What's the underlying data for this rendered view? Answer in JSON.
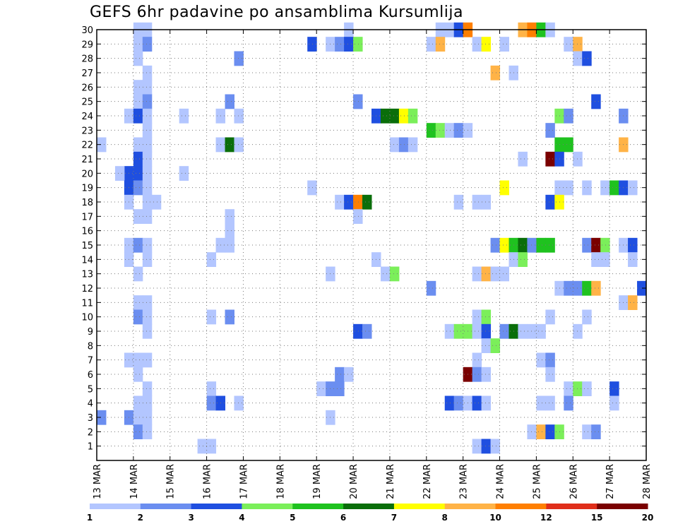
{
  "chart_data": {
    "type": "heatmap",
    "title": "GEFS 6hr padavine po ansamblima Kursumlija",
    "xlabel": "",
    "ylabel": "",
    "x_tick_labels": [
      "13 MAR",
      "14 MAR",
      "15 MAR",
      "16 MAR",
      "17 MAR",
      "18 MAR",
      "19 MAR",
      "20 MAR",
      "21 MAR",
      "22 MAR",
      "23 MAR",
      "24 MAR",
      "25 MAR",
      "26 MAR",
      "27 MAR",
      "28 MAR"
    ],
    "x_range_days": [
      13,
      28
    ],
    "y_tick_labels": [
      "1",
      "2",
      "3",
      "4",
      "5",
      "6",
      "7",
      "8",
      "9",
      "10",
      "11",
      "12",
      "13",
      "14",
      "15",
      "16",
      "17",
      "18",
      "19",
      "20",
      "21",
      "22",
      "23",
      "24",
      "25",
      "26",
      "27",
      "28",
      "29",
      "30"
    ],
    "y_range": [
      0,
      30
    ],
    "grid": true,
    "colorbar": {
      "labels": [
        "1",
        "2",
        "3",
        "4",
        "5",
        "6",
        "7",
        "8",
        "10",
        "12",
        "15",
        "20"
      ],
      "colors": [
        "#b3c6ff",
        "#6b8ef0",
        "#1f4fe0",
        "#7bef5a",
        "#1fc21f",
        "#0a6e0a",
        "#ffff00",
        "#ffb347",
        "#ff7f00",
        "#e02e1a",
        "#7a0000"
      ]
    },
    "cells": [
      [
        14.0,
        30,
        1
      ],
      [
        14.25,
        30,
        1
      ],
      [
        19.75,
        30,
        1
      ],
      [
        22.25,
        30,
        1
      ],
      [
        22.5,
        30,
        1
      ],
      [
        22.75,
        30,
        3
      ],
      [
        23.0,
        30,
        9
      ],
      [
        24.5,
        30,
        8
      ],
      [
        24.75,
        30,
        9
      ],
      [
        25.0,
        30,
        5
      ],
      [
        25.25,
        30,
        1
      ],
      [
        14.0,
        29,
        1
      ],
      [
        14.25,
        29,
        2
      ],
      [
        18.75,
        29,
        3
      ],
      [
        19.25,
        29,
        1
      ],
      [
        19.5,
        29,
        2
      ],
      [
        19.75,
        29,
        3
      ],
      [
        20.0,
        29,
        4
      ],
      [
        22.0,
        29,
        1
      ],
      [
        22.25,
        29,
        8
      ],
      [
        23.25,
        29,
        1
      ],
      [
        23.5,
        29,
        7
      ],
      [
        24.0,
        29,
        1
      ],
      [
        25.75,
        29,
        1
      ],
      [
        26.0,
        29,
        8
      ],
      [
        14.0,
        28,
        1
      ],
      [
        16.75,
        28,
        2
      ],
      [
        26.0,
        28,
        1
      ],
      [
        26.25,
        28,
        3
      ],
      [
        14.25,
        27,
        1
      ],
      [
        23.75,
        27,
        8
      ],
      [
        24.25,
        27,
        1
      ],
      [
        14.0,
        26,
        1
      ],
      [
        14.25,
        26,
        1
      ],
      [
        14.0,
        25,
        1
      ],
      [
        14.25,
        25,
        2
      ],
      [
        16.5,
        25,
        2
      ],
      [
        20.0,
        25,
        2
      ],
      [
        26.5,
        25,
        3
      ],
      [
        13.75,
        24,
        1
      ],
      [
        14.0,
        24,
        3
      ],
      [
        14.25,
        24,
        1
      ],
      [
        15.25,
        24,
        1
      ],
      [
        16.25,
        24,
        1
      ],
      [
        16.75,
        24,
        1
      ],
      [
        20.5,
        24,
        3
      ],
      [
        20.75,
        24,
        6
      ],
      [
        21.0,
        24,
        6
      ],
      [
        21.25,
        24,
        7
      ],
      [
        21.5,
        24,
        4
      ],
      [
        25.5,
        24,
        4
      ],
      [
        25.75,
        24,
        2
      ],
      [
        27.25,
        24,
        2
      ],
      [
        14.25,
        23,
        1
      ],
      [
        22.0,
        23,
        5
      ],
      [
        22.25,
        23,
        4
      ],
      [
        22.5,
        23,
        1
      ],
      [
        22.75,
        23,
        2
      ],
      [
        23.0,
        23,
        1
      ],
      [
        25.25,
        23,
        2
      ],
      [
        13.0,
        22,
        1
      ],
      [
        14.0,
        22,
        1
      ],
      [
        14.25,
        22,
        1
      ],
      [
        16.25,
        22,
        1
      ],
      [
        16.5,
        22,
        6
      ],
      [
        16.75,
        22,
        1
      ],
      [
        21.0,
        22,
        1
      ],
      [
        21.25,
        22,
        2
      ],
      [
        21.5,
        22,
        1
      ],
      [
        25.5,
        22,
        5
      ],
      [
        25.75,
        22,
        5
      ],
      [
        27.25,
        22,
        8
      ],
      [
        14.0,
        21,
        3
      ],
      [
        14.25,
        21,
        1
      ],
      [
        24.5,
        21,
        1
      ],
      [
        25.25,
        21,
        11
      ],
      [
        25.5,
        21,
        3
      ],
      [
        26.0,
        21,
        1
      ],
      [
        13.75,
        20,
        3
      ],
      [
        14.0,
        20,
        3
      ],
      [
        14.25,
        20,
        1
      ],
      [
        13.5,
        20,
        1
      ],
      [
        15.25,
        20,
        1
      ],
      [
        13.75,
        19,
        3
      ],
      [
        14.0,
        19,
        2
      ],
      [
        14.25,
        19,
        1
      ],
      [
        18.75,
        19,
        1
      ],
      [
        24.0,
        19,
        7
      ],
      [
        25.5,
        19,
        1
      ],
      [
        25.75,
        19,
        1
      ],
      [
        26.25,
        19,
        1
      ],
      [
        26.75,
        19,
        1
      ],
      [
        27.0,
        19,
        5
      ],
      [
        27.25,
        19,
        3
      ],
      [
        27.5,
        19,
        1
      ],
      [
        13.75,
        18,
        1
      ],
      [
        14.25,
        18,
        1
      ],
      [
        14.5,
        18,
        1
      ],
      [
        19.5,
        18,
        1
      ],
      [
        19.75,
        18,
        3
      ],
      [
        20.0,
        18,
        9
      ],
      [
        20.25,
        18,
        6
      ],
      [
        22.75,
        18,
        1
      ],
      [
        23.25,
        18,
        1
      ],
      [
        23.5,
        18,
        1
      ],
      [
        25.25,
        18,
        3
      ],
      [
        25.5,
        18,
        7
      ],
      [
        14.0,
        17,
        1
      ],
      [
        14.25,
        17,
        1
      ],
      [
        16.5,
        17,
        1
      ],
      [
        20.0,
        17,
        1
      ],
      [
        16.5,
        16,
        1
      ],
      [
        13.75,
        15,
        1
      ],
      [
        14.0,
        15,
        2
      ],
      [
        14.25,
        15,
        1
      ],
      [
        16.25,
        15,
        1
      ],
      [
        16.5,
        15,
        1
      ],
      [
        23.75,
        15,
        2
      ],
      [
        24.0,
        15,
        7
      ],
      [
        24.25,
        15,
        5
      ],
      [
        24.5,
        15,
        6
      ],
      [
        24.75,
        15,
        2
      ],
      [
        25.0,
        15,
        5
      ],
      [
        25.25,
        15,
        5
      ],
      [
        26.25,
        15,
        2
      ],
      [
        26.5,
        15,
        11
      ],
      [
        26.75,
        15,
        4
      ],
      [
        27.25,
        15,
        1
      ],
      [
        27.5,
        15,
        3
      ],
      [
        13.75,
        14,
        1
      ],
      [
        14.25,
        14,
        1
      ],
      [
        16.0,
        14,
        1
      ],
      [
        20.5,
        14,
        1
      ],
      [
        24.25,
        14,
        1
      ],
      [
        24.5,
        14,
        4
      ],
      [
        26.5,
        14,
        1
      ],
      [
        26.75,
        14,
        1
      ],
      [
        27.5,
        14,
        1
      ],
      [
        14.0,
        13,
        1
      ],
      [
        19.25,
        13,
        1
      ],
      [
        20.75,
        13,
        1
      ],
      [
        21.0,
        13,
        4
      ],
      [
        23.25,
        13,
        1
      ],
      [
        23.5,
        13,
        8
      ],
      [
        23.75,
        13,
        1
      ],
      [
        24.0,
        13,
        1
      ],
      [
        22.0,
        12,
        2
      ],
      [
        25.5,
        12,
        1
      ],
      [
        25.75,
        12,
        2
      ],
      [
        26.0,
        12,
        2
      ],
      [
        26.25,
        12,
        5
      ],
      [
        26.5,
        12,
        8
      ],
      [
        27.75,
        12,
        3
      ],
      [
        14.0,
        11,
        1
      ],
      [
        14.25,
        11,
        1
      ],
      [
        27.25,
        11,
        1
      ],
      [
        27.5,
        11,
        8
      ],
      [
        14.0,
        10,
        2
      ],
      [
        14.25,
        10,
        1
      ],
      [
        16.0,
        10,
        1
      ],
      [
        16.5,
        10,
        2
      ],
      [
        23.25,
        10,
        1
      ],
      [
        23.5,
        10,
        4
      ],
      [
        25.25,
        10,
        1
      ],
      [
        26.25,
        10,
        1
      ],
      [
        14.25,
        9,
        1
      ],
      [
        20.0,
        9,
        3
      ],
      [
        20.25,
        9,
        2
      ],
      [
        22.5,
        9,
        1
      ],
      [
        22.75,
        9,
        4
      ],
      [
        23.0,
        9,
        4
      ],
      [
        23.25,
        9,
        1
      ],
      [
        23.5,
        9,
        3
      ],
      [
        24.0,
        9,
        2
      ],
      [
        24.25,
        9,
        6
      ],
      [
        24.5,
        9,
        1
      ],
      [
        24.75,
        9,
        1
      ],
      [
        25.0,
        9,
        1
      ],
      [
        26.0,
        9,
        1
      ],
      [
        23.5,
        8,
        1
      ],
      [
        23.75,
        8,
        4
      ],
      [
        13.75,
        7,
        1
      ],
      [
        14.0,
        7,
        1
      ],
      [
        14.25,
        7,
        1
      ],
      [
        23.25,
        7,
        1
      ],
      [
        25.0,
        7,
        1
      ],
      [
        25.25,
        7,
        2
      ],
      [
        14.0,
        6,
        1
      ],
      [
        19.5,
        6,
        2
      ],
      [
        19.75,
        6,
        1
      ],
      [
        23.0,
        6,
        11
      ],
      [
        23.25,
        6,
        2
      ],
      [
        23.5,
        6,
        1
      ],
      [
        25.25,
        6,
        1
      ],
      [
        14.25,
        5,
        1
      ],
      [
        16.0,
        5,
        1
      ],
      [
        19.0,
        5,
        1
      ],
      [
        19.25,
        5,
        2
      ],
      [
        19.5,
        5,
        2
      ],
      [
        25.75,
        5,
        1
      ],
      [
        26.0,
        5,
        4
      ],
      [
        26.25,
        5,
        1
      ],
      [
        27.0,
        5,
        3
      ],
      [
        14.0,
        4,
        1
      ],
      [
        14.25,
        4,
        1
      ],
      [
        16.0,
        4,
        2
      ],
      [
        16.25,
        4,
        3
      ],
      [
        16.75,
        4,
        1
      ],
      [
        22.5,
        4,
        3
      ],
      [
        22.75,
        4,
        2
      ],
      [
        23.0,
        4,
        1
      ],
      [
        23.25,
        4,
        3
      ],
      [
        23.5,
        4,
        1
      ],
      [
        25.0,
        4,
        1
      ],
      [
        25.25,
        4,
        1
      ],
      [
        25.75,
        4,
        2
      ],
      [
        27.0,
        4,
        1
      ],
      [
        13.0,
        3,
        2
      ],
      [
        13.75,
        3,
        2
      ],
      [
        14.0,
        3,
        1
      ],
      [
        14.25,
        3,
        1
      ],
      [
        19.25,
        3,
        1
      ],
      [
        14.0,
        2,
        2
      ],
      [
        14.25,
        2,
        1
      ],
      [
        24.75,
        2,
        1
      ],
      [
        25.0,
        2,
        8
      ],
      [
        25.25,
        2,
        3
      ],
      [
        25.5,
        2,
        4
      ],
      [
        26.25,
        2,
        1
      ],
      [
        26.5,
        2,
        2
      ],
      [
        15.75,
        1,
        1
      ],
      [
        16.0,
        1,
        1
      ],
      [
        23.25,
        1,
        1
      ],
      [
        23.5,
        1,
        3
      ],
      [
        23.75,
        1,
        1
      ]
    ]
  }
}
